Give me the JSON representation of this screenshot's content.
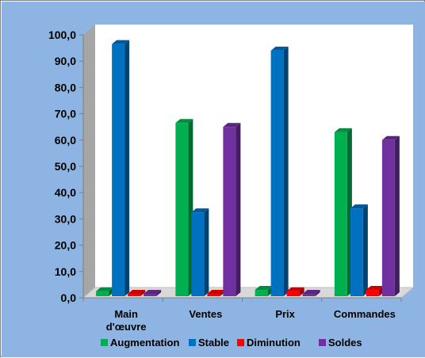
{
  "chart_data": {
    "type": "bar",
    "title": "",
    "xlabel": "",
    "ylabel": "",
    "ylim": [
      0,
      100
    ],
    "yticks": [
      "0,0",
      "10,0",
      "20,0",
      "30,0",
      "40,0",
      "50,0",
      "60,0",
      "70,0",
      "80,0",
      "90,0",
      "100,0"
    ],
    "categories": [
      "Main d'œuvre",
      "Ventes",
      "Prix",
      "Commandes"
    ],
    "category_lines": [
      [
        "Main",
        "d'œuvre"
      ],
      [
        "Ventes"
      ],
      [
        "Prix"
      ],
      [
        "Commandes"
      ]
    ],
    "series": [
      {
        "name": "Augmentation",
        "color": "#00b050",
        "values": [
          2.5,
          66.5,
          3.0,
          63.0
        ]
      },
      {
        "name": "Stable",
        "color": "#0070c0",
        "values": [
          96.5,
          32.5,
          94.0,
          34.0
        ]
      },
      {
        "name": "Diminution",
        "color": "#ff0000",
        "values": [
          0.5,
          1.0,
          2.5,
          3.0
        ]
      },
      {
        "name": "Soldes",
        "color": "#7030a0",
        "values": [
          1.5,
          65.0,
          0.5,
          60.0
        ]
      }
    ],
    "legend_position": "bottom",
    "grid": false,
    "background": "#8db4e2",
    "plot_background": "#ffffff",
    "wall_color": "#a6a6a6"
  }
}
